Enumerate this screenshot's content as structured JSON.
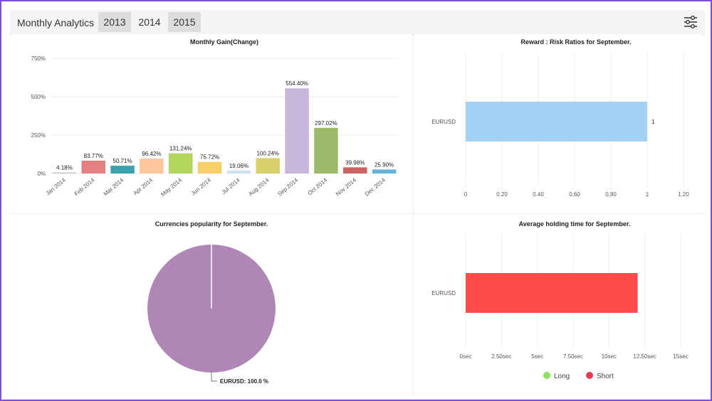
{
  "toolbar": {
    "title": "Monthly Analytics",
    "tabs": [
      {
        "label": "2013",
        "state": "inactive"
      },
      {
        "label": "2014",
        "state": "active"
      },
      {
        "label": "2015",
        "state": "inactive"
      }
    ],
    "settings_icon": "sliders-icon"
  },
  "colors": {
    "frame": "#7d4ddb",
    "reward_bar": "#a5d1f5",
    "pie": "#b086b7",
    "holding_bar": "#ff4a4a",
    "long": "#8be060",
    "short": "#ee3a4c"
  },
  "chart_data": [
    {
      "type": "bar",
      "title": "Monthly Gain(Change)",
      "categories": [
        "Jan 2014",
        "Feb 2014",
        "Mar 2014",
        "Apr 2014",
        "May 2014",
        "Jun 2014",
        "Jul 2014",
        "Aug 2014",
        "Sep 2014",
        "Oct 2014",
        "Nov 2014",
        "Dec 2014"
      ],
      "values": [
        4.18,
        83.77,
        50.71,
        96.42,
        131.24,
        75.72,
        19.06,
        100.24,
        554.4,
        297.02,
        39.98,
        25.9
      ],
      "labels": [
        "4.18%",
        "83.77%",
        "50.71%",
        "96.42%",
        "131.24%",
        "75.72%",
        "19.06%",
        "100.24%",
        "554.40%",
        "297.02%",
        "39.98%",
        "25.90%"
      ],
      "bar_colors": [
        "#c7c7c7",
        "#e58080",
        "#3aa3ad",
        "#ffc59b",
        "#b3d65f",
        "#f9cf6b",
        "#cfe3f5",
        "#d8d06a",
        "#c7b6d9",
        "#9dba6a",
        "#c96464",
        "#62b4d6"
      ],
      "yticks": [
        "0%",
        "250%",
        "500%",
        "750%"
      ],
      "ylim": [
        0,
        750
      ],
      "grid": true
    },
    {
      "type": "bar",
      "orientation": "horizontal",
      "title": "Reward : Risk Ratios for September.",
      "categories": [
        "EURUSD"
      ],
      "values": [
        1
      ],
      "labels": [
        "1"
      ],
      "xticks": [
        "0",
        "0.20",
        "0.40",
        "0.60",
        "0.80",
        "1",
        "1.20"
      ],
      "xlim": [
        0,
        1.2
      ],
      "grid": true
    },
    {
      "type": "pie",
      "title": "Currencies popularity for September.",
      "slices": [
        {
          "label": "EURUSD: 100.0 %",
          "value": 100
        }
      ]
    },
    {
      "type": "bar",
      "orientation": "horizontal",
      "title": "Average holding time for September.",
      "categories": [
        "EURUSD"
      ],
      "values": [
        12
      ],
      "xticks": [
        "0sec",
        "2.50sec",
        "5sec",
        "7.50sec",
        "10sec",
        "12.50sec",
        "15sec"
      ],
      "xlim": [
        0,
        15
      ],
      "legend": [
        {
          "name": "Long",
          "color": "#8be060"
        },
        {
          "name": "Short",
          "color": "#ee3a4c"
        }
      ],
      "legend_position": "bottom",
      "grid": true
    }
  ]
}
